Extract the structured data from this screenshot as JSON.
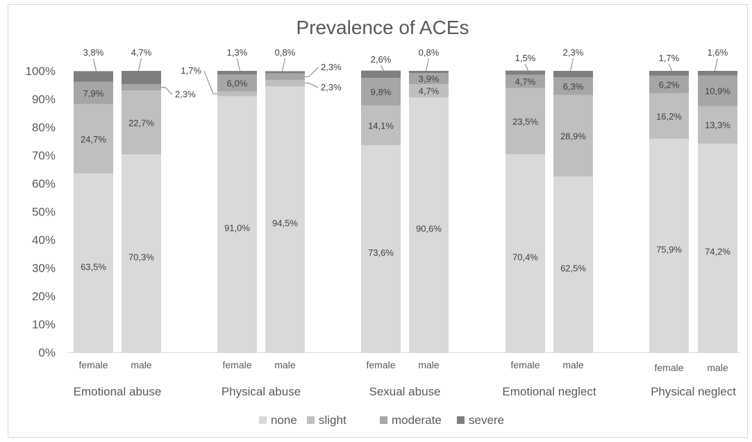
{
  "chart_data": {
    "type": "bar",
    "stacked": true,
    "title": "Prevalence of ACEs",
    "xlabel": "",
    "ylabel": "",
    "ylim": [
      0,
      100
    ],
    "y_ticks": [
      "0%",
      "10%",
      "20%",
      "30%",
      "40%",
      "50%",
      "60%",
      "70%",
      "80%",
      "90%",
      "100%"
    ],
    "grid": false,
    "legend_position": "bottom",
    "groups": [
      "Emotional abuse",
      "Physical abuse",
      "Sexual abuse",
      "Emotional neglect",
      "Physical neglect"
    ],
    "subcategories": [
      "female",
      "male"
    ],
    "categories": [
      "Emotional abuse - female",
      "Emotional abuse - male",
      "Physical abuse - female",
      "Physical abuse - male",
      "Sexual abuse - female",
      "Sexual abuse - male",
      "Emotional neglect - female",
      "Emotional neglect - male",
      "Physical neglect - female",
      "Physical neglect - male"
    ],
    "series": [
      {
        "name": "none",
        "color": "#d9d9d9",
        "values": [
          63.5,
          70.3,
          91.0,
          94.5,
          73.6,
          90.6,
          70.4,
          62.5,
          75.9,
          74.2
        ],
        "labels": [
          "63,5%",
          "70,3%",
          "91,0%",
          "94,5%",
          "73,6%",
          "90,6%",
          "70,4%",
          "62,5%",
          "75,9%",
          "74,2%"
        ]
      },
      {
        "name": "slight",
        "color": "#bfbfbf",
        "values": [
          24.7,
          22.7,
          1.7,
          2.3,
          14.1,
          4.7,
          23.5,
          28.9,
          16.2,
          13.3
        ],
        "labels": [
          "24,7%",
          "22,7%",
          "1,7%",
          "2,3%",
          "14,1%",
          "4,7%",
          "23,5%",
          "28,9%",
          "16,2%",
          "13,3%"
        ]
      },
      {
        "name": "moderate",
        "color": "#a6a6a6",
        "values": [
          7.9,
          2.3,
          6.0,
          2.3,
          9.8,
          3.9,
          4.7,
          6.3,
          6.2,
          10.9
        ],
        "labels": [
          "7,9%",
          "2,3%",
          "6,0%",
          "2,3%",
          "9,8%",
          "3,9%",
          "4,7%",
          "6,3%",
          "6,2%",
          "10,9%"
        ]
      },
      {
        "name": "severe",
        "color": "#7f7f7f",
        "values": [
          3.8,
          4.7,
          1.3,
          0.8,
          2.6,
          0.8,
          1.5,
          2.3,
          1.7,
          1.6
        ],
        "labels": [
          "3,8%",
          "4,7%",
          "1,3%",
          "0,8%",
          "2,6%",
          "0,8%",
          "1,5%",
          "2,3%",
          "1,7%",
          "1,6%"
        ]
      }
    ]
  }
}
